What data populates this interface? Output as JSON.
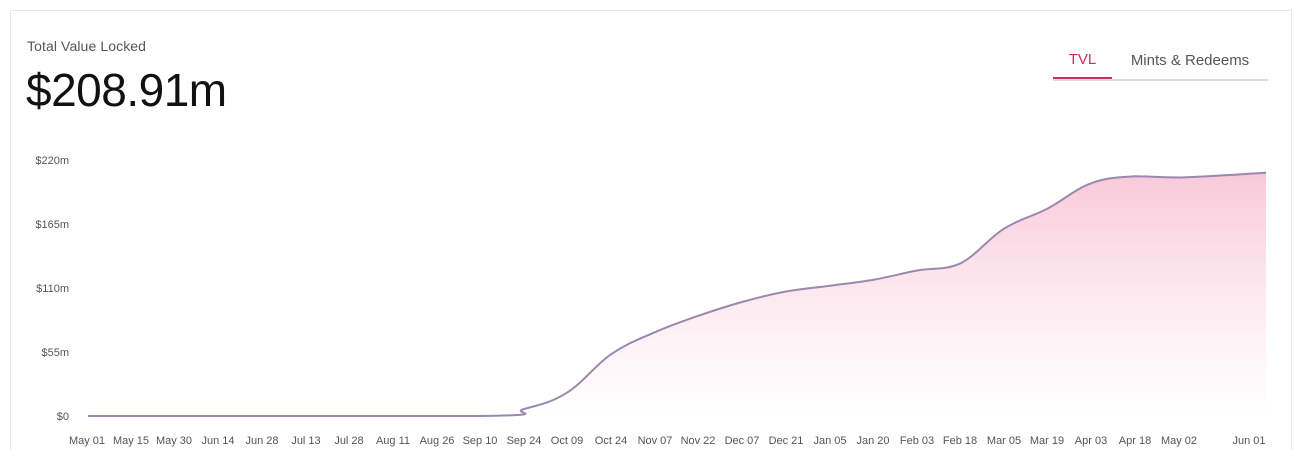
{
  "header": {
    "metric_label": "Total Value Locked",
    "metric_value": "$208.91m"
  },
  "tabs": [
    {
      "label": "TVL",
      "active": true
    },
    {
      "label": "Mints & Redeems",
      "active": false
    }
  ],
  "colors": {
    "accent": "#cf2a63",
    "line": "#9b88b0",
    "area_top": "#f8c6d6",
    "area_bottom": "#ffffff"
  },
  "chart_data": {
    "type": "area",
    "title": "",
    "xlabel": "",
    "ylabel": "",
    "ylim": [
      0,
      220
    ],
    "yticks": [
      {
        "value": 0,
        "label": "$0"
      },
      {
        "value": 55,
        "label": "$55m"
      },
      {
        "value": 110,
        "label": "$110m"
      },
      {
        "value": 165,
        "label": "$165m"
      },
      {
        "value": 220,
        "label": "$220m"
      }
    ],
    "xticks": [
      "May 01",
      "May 15",
      "May 30",
      "Jun 14",
      "Jun 28",
      "Jul 13",
      "Jul 28",
      "Aug 11",
      "Aug 26",
      "Sep 10",
      "Sep 24",
      "Oct 09",
      "Oct 24",
      "Nov 07",
      "Nov 22",
      "Dec 07",
      "Dec 21",
      "Jan 05",
      "Jan 20",
      "Feb 03",
      "Feb 18",
      "Mar 05",
      "Mar 19",
      "Apr 03",
      "Apr 18",
      "May 02",
      "Jun 01"
    ],
    "grid": false,
    "series": [
      {
        "x": [
          "May 01",
          "Sep 10",
          "Sep 24",
          "Oct 09",
          "Oct 24",
          "Nov 07",
          "Nov 22",
          "Dec 07",
          "Dec 21",
          "Jan 05",
          "Jan 20",
          "Feb 03",
          "Feb 18",
          "Mar 05",
          "Mar 19",
          "Apr 03",
          "Apr 18",
          "May 02",
          "Jun 01"
        ],
        "values": [
          0,
          0,
          6,
          20,
          53,
          72,
          86,
          98,
          107,
          112,
          117,
          125,
          131,
          161,
          178,
          200,
          206,
          205,
          209
        ]
      }
    ]
  }
}
